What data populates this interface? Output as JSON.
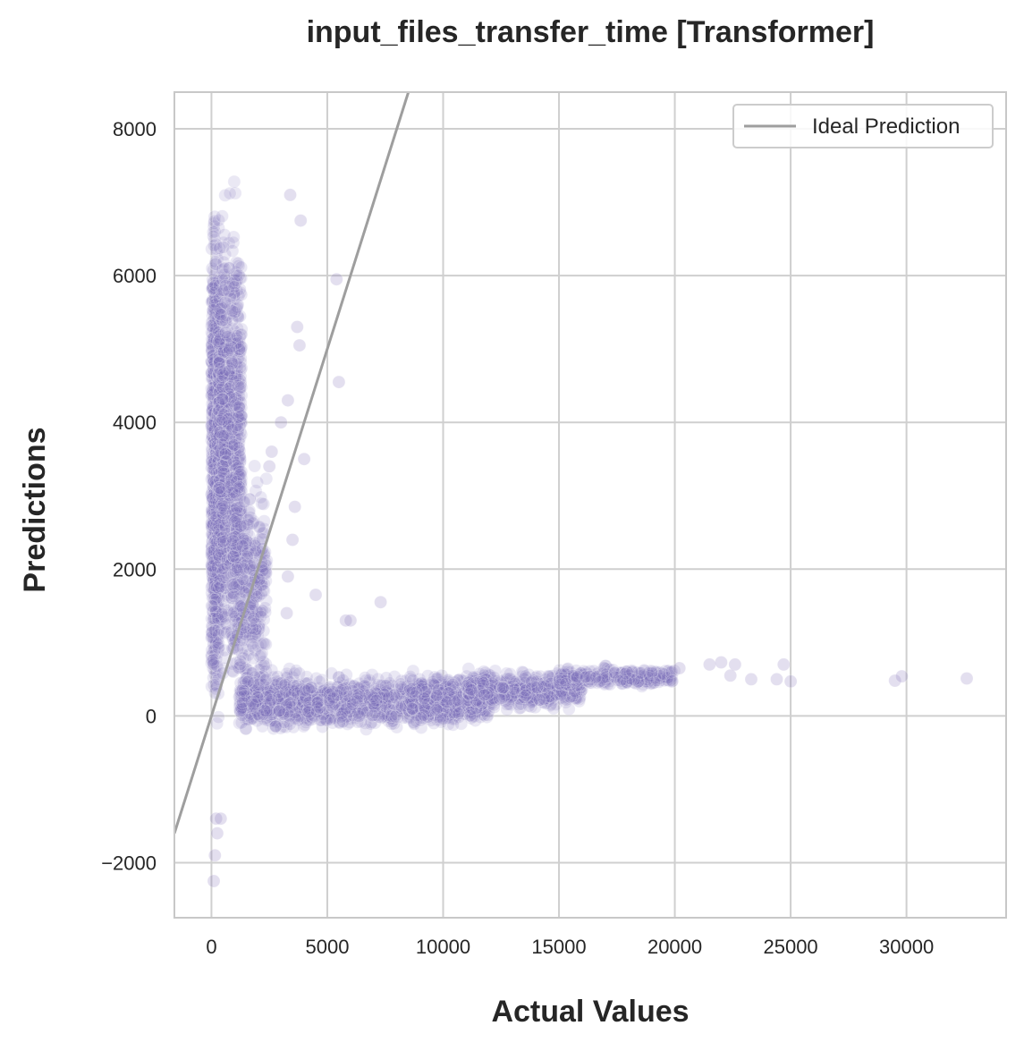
{
  "chart_data": {
    "type": "scatter",
    "title": "input_files_transfer_time [Transformer]",
    "xlabel": "Actual Values",
    "ylabel": "Predictions",
    "xlim": [
      -1600,
      34300
    ],
    "ylim": [
      -2750,
      8500
    ],
    "x_ticks": [
      0,
      5000,
      10000,
      15000,
      20000,
      25000,
      30000
    ],
    "x_tick_labels": [
      "0",
      "5000",
      "10000",
      "15000",
      "20000",
      "25000",
      "30000"
    ],
    "y_ticks": [
      -2000,
      0,
      2000,
      4000,
      6000,
      8000
    ],
    "y_tick_labels": [
      "−2000",
      "0",
      "2000",
      "4000",
      "6000",
      "8000"
    ],
    "grid": true,
    "legend": {
      "position": "top-right",
      "entries": [
        "Ideal Prediction"
      ]
    },
    "colors": {
      "points": "#7f6fb8",
      "ideal_line": "#9e9e9e",
      "grid": "#cfcfcf",
      "spine": "#c8c8c8"
    },
    "series": [
      {
        "name": "Ideal Prediction",
        "kind": "line",
        "x": [
          -1600,
          8500
        ],
        "y": [
          -1600,
          8500
        ]
      },
      {
        "kind": "scatter",
        "point_alpha": 0.16,
        "clusters": [
          {
            "x": [
              0,
              320
            ],
            "y": [
              -1200,
              7900
            ],
            "n": 900
          },
          {
            "x": [
              300,
              1300
            ],
            "y": [
              -300,
              7900
            ],
            "n": 900
          },
          {
            "x": [
              900,
              2400
            ],
            "y": [
              -300,
              3800
            ],
            "n": 350
          },
          {
            "x": [
              1200,
              4200
            ],
            "y": [
              -350,
              750
            ],
            "n": 500
          },
          {
            "x": [
              4000,
              8500
            ],
            "y": [
              -300,
              700
            ],
            "n": 450
          },
          {
            "x": [
              8500,
              12000
            ],
            "y": [
              -250,
              700
            ],
            "n": 600
          },
          {
            "x": [
              11000,
              16000
            ],
            "y": [
              0,
              700
            ],
            "n": 500
          },
          {
            "x": [
              15000,
              20000
            ],
            "y": [
              350,
              720
            ],
            "n": 250
          }
        ],
        "points": [
          [
            100,
            -2250
          ],
          [
            150,
            -1900
          ],
          [
            250,
            -1600
          ],
          [
            200,
            -1400
          ],
          [
            400,
            -1400
          ],
          [
            3400,
            7100
          ],
          [
            3850,
            6750
          ],
          [
            5400,
            5950
          ],
          [
            5500,
            4550
          ],
          [
            3700,
            5300
          ],
          [
            3800,
            5050
          ],
          [
            3300,
            4300
          ],
          [
            3000,
            4000
          ],
          [
            4000,
            3500
          ],
          [
            3600,
            2850
          ],
          [
            3500,
            2400
          ],
          [
            2600,
            3600
          ],
          [
            2500,
            3400
          ],
          [
            3300,
            1900
          ],
          [
            3250,
            1400
          ],
          [
            4500,
            1650
          ],
          [
            5800,
            1300
          ],
          [
            7300,
            1550
          ],
          [
            6000,
            1300
          ],
          [
            20200,
            650
          ],
          [
            21500,
            700
          ],
          [
            22000,
            730
          ],
          [
            22600,
            700
          ],
          [
            23300,
            500
          ],
          [
            24400,
            500
          ],
          [
            24700,
            700
          ],
          [
            25000,
            470
          ],
          [
            22400,
            550
          ],
          [
            29500,
            480
          ],
          [
            29800,
            540
          ],
          [
            32600,
            510
          ]
        ]
      }
    ]
  }
}
